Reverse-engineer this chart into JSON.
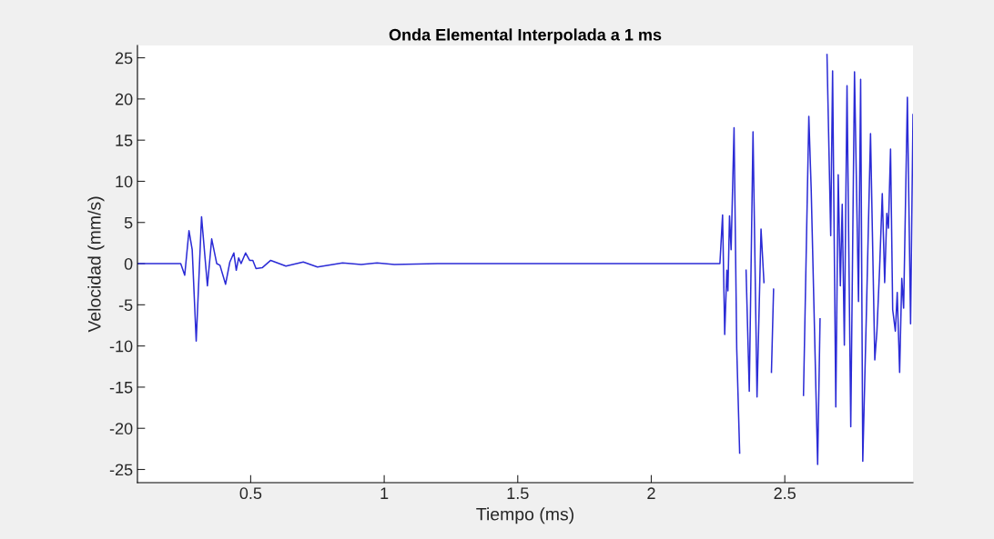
{
  "chart_data": {
    "type": "line",
    "title": "Onda Elemental Interpolada a 1 ms",
    "xlabel": "Tiempo (ms)",
    "ylabel": "Velocidad (mm/s)",
    "xlim": [
      0.076,
      2.98
    ],
    "ylim": [
      -26.6,
      26.5
    ],
    "xticks": [
      0.5,
      1,
      1.5,
      2,
      2.5
    ],
    "yticks": [
      -25,
      -20,
      -15,
      -10,
      -5,
      0,
      5,
      10,
      15,
      20,
      25
    ],
    "grid": false,
    "legend": false,
    "marker": "none",
    "line_style": "solid",
    "series": [
      {
        "color": "#2b2bd6",
        "x": [
          0.076,
          0.238,
          0.253,
          0.269,
          0.281,
          0.296,
          0.316,
          0.338,
          0.354,
          0.373,
          0.385,
          0.406,
          0.422,
          0.437,
          0.446,
          0.455,
          0.464,
          0.481,
          0.496,
          0.508,
          0.52,
          0.543,
          0.575,
          0.632,
          0.697,
          0.75,
          0.844,
          0.914,
          0.973,
          1.038,
          1.2,
          1.5,
          1.8,
          2.0,
          2.257,
          2.267,
          2.275,
          2.283,
          2.287,
          2.293,
          2.299,
          2.31,
          2.32,
          2.331,
          2.344,
          2.355,
          2.367,
          2.381,
          2.396,
          2.411,
          2.422,
          2.437,
          2.45,
          2.458,
          2.47,
          2.499,
          2.514,
          2.544,
          2.558,
          2.57,
          2.59,
          2.599,
          2.623,
          2.632,
          2.644,
          2.658,
          2.672,
          2.679,
          2.691,
          2.7,
          2.708,
          2.715,
          2.723,
          2.733,
          2.747,
          2.761,
          2.776,
          2.784,
          2.792,
          2.806,
          2.821,
          2.837,
          2.845,
          2.855,
          2.865,
          2.874,
          2.882,
          2.888,
          2.896,
          2.904,
          2.914,
          2.921,
          2.93,
          2.938,
          2.945,
          2.959,
          2.971,
          2.98
        ],
        "values": [
          0,
          0,
          -1.4,
          4.0,
          1.7,
          -9.4,
          5.7,
          -2.7,
          3.0,
          0,
          -0.2,
          -2.5,
          0.2,
          1.3,
          -0.8,
          0.7,
          0,
          1.3,
          0.4,
          0.4,
          -0.6,
          -0.5,
          0.4,
          -0.3,
          0.2,
          -0.4,
          0.1,
          -0.1,
          0.1,
          -0.1,
          0,
          0,
          0,
          0,
          0,
          5.9,
          -8.6,
          -0.8,
          -3.3,
          5.8,
          1.7,
          16.5,
          -10.3,
          -23.0,
          null,
          -0.8,
          -15.5,
          16.0,
          -16.2,
          4.2,
          -2.3,
          null,
          -13.2,
          -3.1,
          null,
          null,
          null,
          null,
          null,
          -16.0,
          17.9,
          8.9,
          -24.4,
          -6.7,
          null,
          25.4,
          3.4,
          23.4,
          -17.4,
          10.8,
          -2.7,
          7.2,
          -9.9,
          21.6,
          -19.8,
          23.3,
          -4.6,
          22.4,
          -24.0,
          -5.4,
          15.8,
          -11.7,
          -8.2,
          -0.6,
          8.5,
          -2.3,
          6.1,
          4.3,
          13.9,
          -5.6,
          -8.2,
          -3.5,
          -13.2,
          -1.8,
          -5.4,
          20.2,
          -7.3,
          18.1
        ]
      }
    ]
  }
}
